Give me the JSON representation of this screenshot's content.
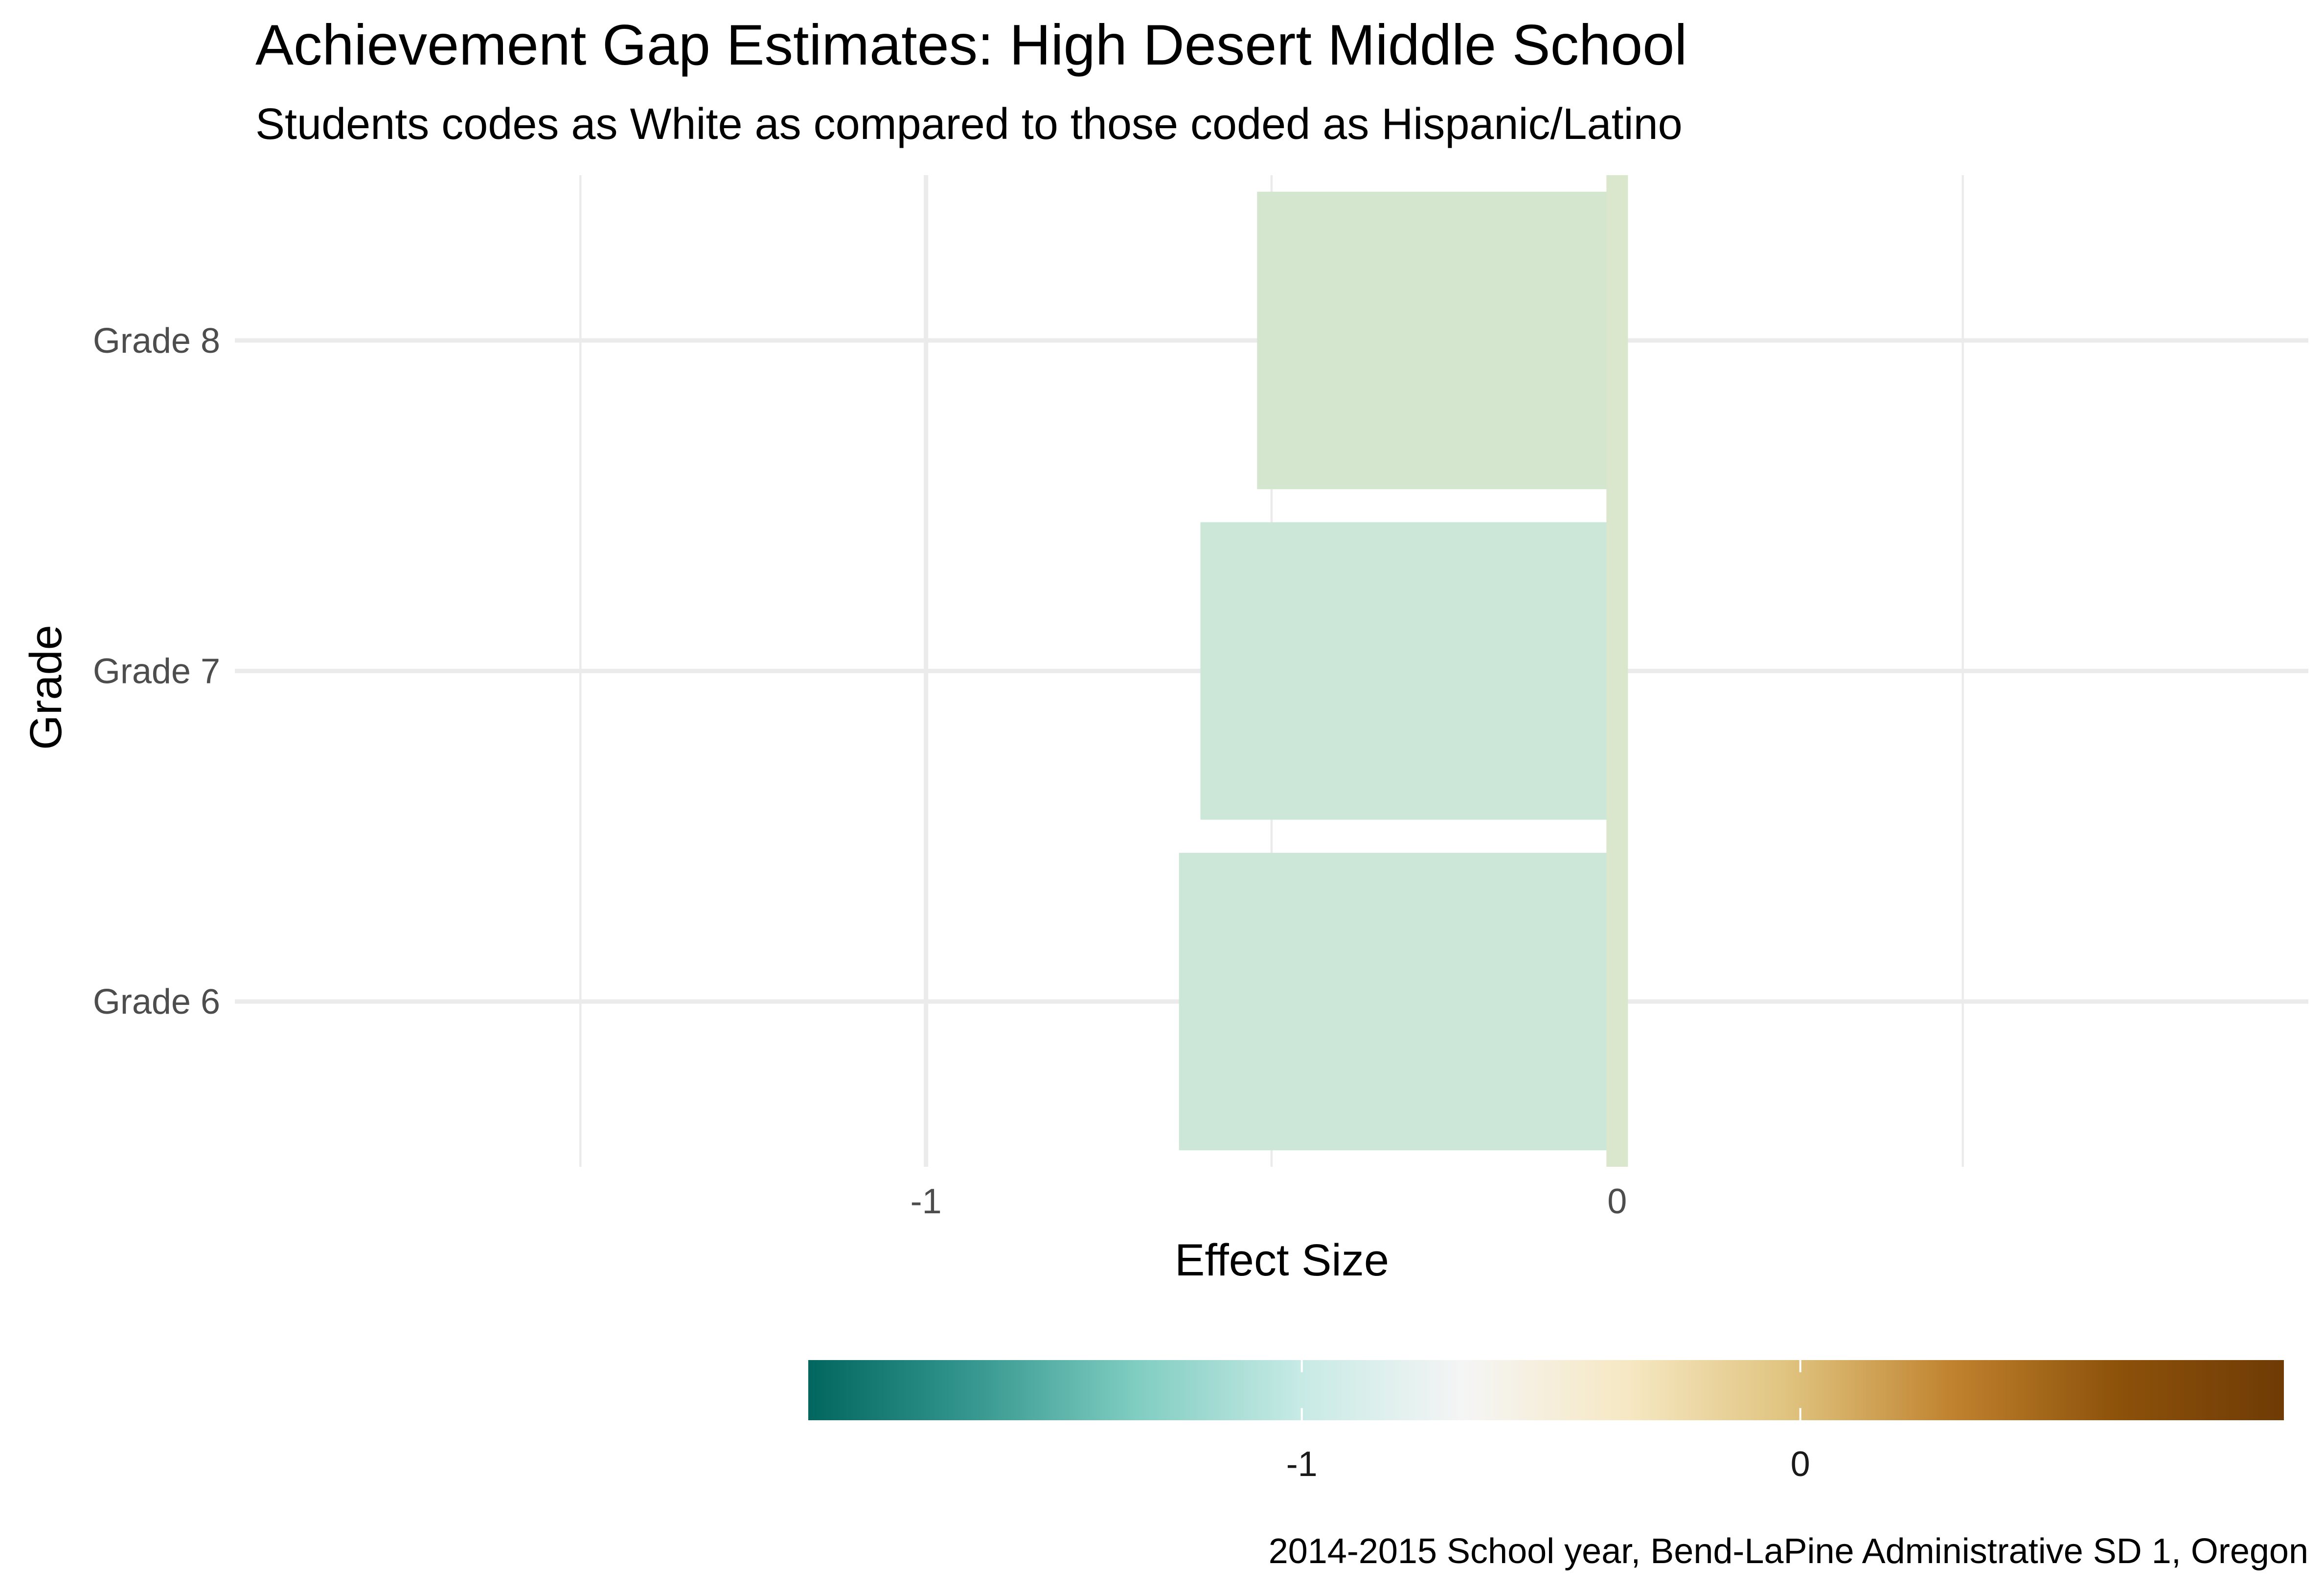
{
  "chart_data": {
    "type": "bar",
    "orientation": "horizontal",
    "title": "Achievement Gap Estimates: High Desert Middle School",
    "subtitle": "Students codes as White as compared to those coded as Hispanic/Latino",
    "caption": "2014-2015 School year, Bend-LaPine Administrative SD 1, Oregon",
    "xlabel": "Effect Size",
    "ylabel": "Grade",
    "categories": [
      "Grade 6",
      "Grade 7",
      "Grade 8"
    ],
    "values": [
      -0.634,
      -0.603,
      -0.521
    ],
    "bar_colors": [
      "#cce6d8",
      "#cce6d8",
      "#d4e6cd"
    ],
    "zero_line": {
      "value": 0,
      "color": "#dbe7cc"
    },
    "xlim": [
      -2.0,
      1.0
    ],
    "x_ticks": [
      -1,
      0
    ],
    "x_tick_labels": [
      "-1",
      "0"
    ],
    "x_minor_ticks": [
      -1.5,
      -0.5,
      0.5
    ],
    "grid": true,
    "legend": {
      "type": "colorbar",
      "position": "bottom",
      "range": [
        -1.99,
        0.97
      ],
      "ticks": [
        -1,
        0
      ],
      "tick_labels": [
        "-1",
        "0"
      ],
      "palette": [
        "#01665e",
        "#35978f",
        "#80cdc1",
        "#c7eae5",
        "#f5f5f5",
        "#f6e8c3",
        "#dfc27d",
        "#bf812d",
        "#8c510a",
        "#6f3b06"
      ]
    }
  }
}
